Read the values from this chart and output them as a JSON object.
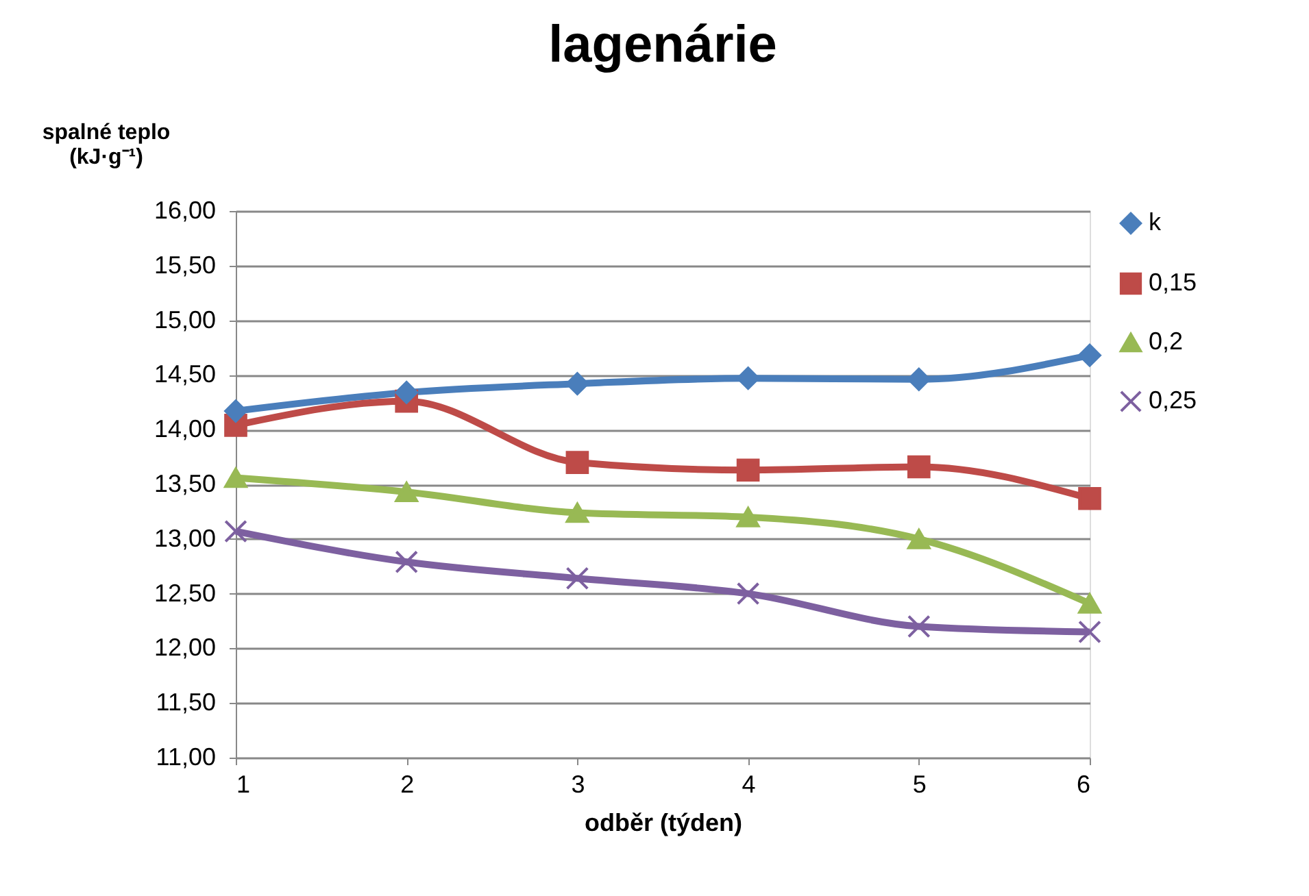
{
  "chart_data": {
    "type": "line",
    "title": "lagenárie",
    "xlabel": "odběr (týden)",
    "ylabel": "spalné teplo\n(kJ·g⁻¹)",
    "x": [
      1,
      2,
      3,
      4,
      5,
      6
    ],
    "series": [
      {
        "name": "k",
        "color": "#4a7ebb",
        "marker": "diamond",
        "values": [
          14.17,
          14.34,
          14.42,
          14.47,
          14.46,
          14.68
        ]
      },
      {
        "name": "0,15",
        "color": "#be4b48",
        "marker": "square",
        "values": [
          14.04,
          14.26,
          13.7,
          13.63,
          13.66,
          13.37
        ]
      },
      {
        "name": "0,2",
        "color": "#98b954",
        "marker": "triangle",
        "values": [
          13.56,
          13.43,
          13.24,
          13.2,
          13.0,
          12.41
        ]
      },
      {
        "name": "0,25",
        "color": "#7d60a0",
        "marker": "cross",
        "values": [
          13.07,
          12.79,
          12.64,
          12.5,
          12.2,
          12.15
        ]
      }
    ],
    "xlim": [
      1,
      6
    ],
    "xticks": [
      1,
      2,
      3,
      4,
      5,
      6
    ],
    "ylim": [
      11,
      16
    ],
    "yticks": [
      {
        "value": 11,
        "label": "11,00"
      },
      {
        "value": 11.5,
        "label": "11,50"
      },
      {
        "value": 12,
        "label": "12,00"
      },
      {
        "value": 12.5,
        "label": "12,50"
      },
      {
        "value": 13,
        "label": "13,00"
      },
      {
        "value": 13.5,
        "label": "13,50"
      },
      {
        "value": 14,
        "label": "14,00"
      },
      {
        "value": 14.5,
        "label": "14,50"
      },
      {
        "value": 15,
        "label": "15,00"
      },
      {
        "value": 15.5,
        "label": "15,50"
      },
      {
        "value": 16,
        "label": "16,00"
      }
    ],
    "grid": "y",
    "legend": "right",
    "line_style": "solid"
  }
}
